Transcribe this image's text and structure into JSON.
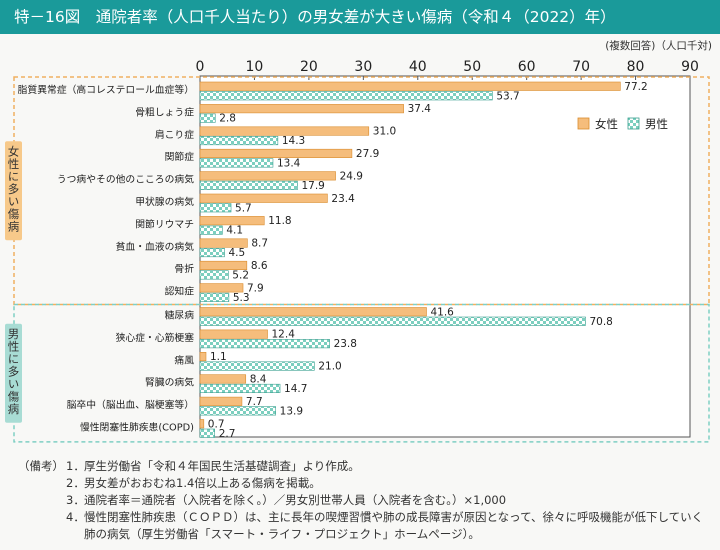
{
  "title": "特－16図　通院者率（人口千人当たり）の男女差が大きい傷病（令和４（2022）年）",
  "unit_note": "(複数回答)（人口千対)",
  "group_labels": {
    "female": "女性に多い傷病",
    "male": "男性に多い傷病"
  },
  "colors": {
    "female_fill": "#f5bd7c",
    "female_stroke": "#d98c2e",
    "male_check_a": "#7ccfbf",
    "male_check_b": "#ffffff",
    "male_stroke": "#3aa090",
    "group_border": "#f0b060",
    "male_group_border": "#7fcfc4",
    "title_bg": "#1a9a9a",
    "group_tag_female": "#f7c98a",
    "group_tag_male": "#a8dcd4"
  },
  "chart_data": {
    "type": "bar",
    "orientation": "horizontal",
    "xlim": [
      0,
      90
    ],
    "x_ticks": [
      "0",
      "10",
      "20",
      "30",
      "40",
      "50",
      "60",
      "70",
      "80",
      "90"
    ],
    "legend_position": "top-right",
    "categories": [
      "脂質異常症（高コレステロール血症等）",
      "骨粗しょう症",
      "肩こり症",
      "関節症",
      "うつ病やその他のこころの病気",
      "甲状腺の病気",
      "関節リウマチ",
      "貧血・血液の病気",
      "骨折",
      "認知症",
      "糖尿病",
      "狭心症・心筋梗塞",
      "痛風",
      "腎臓の病気",
      "脳卒中（脳出血、脳梗塞等）",
      "慢性閉塞性肺疾患(COPD)"
    ],
    "series": [
      {
        "name": "女性",
        "values": [
          77.2,
          37.4,
          31.0,
          27.9,
          24.9,
          23.4,
          11.8,
          8.7,
          8.6,
          7.9,
          41.6,
          12.4,
          1.1,
          8.4,
          7.7,
          0.7
        ],
        "labels": [
          "77.2",
          "37.4",
          "31.0",
          "27.9",
          "24.9",
          "23.4",
          "11.8",
          "8.7",
          "8.6",
          "7.9",
          "41.6",
          "12.4",
          "1.1",
          "8.4",
          "7.7",
          "0.7"
        ]
      },
      {
        "name": "男性",
        "values": [
          53.7,
          2.8,
          14.3,
          13.4,
          17.9,
          5.7,
          4.1,
          4.5,
          5.2,
          5.3,
          70.8,
          23.8,
          21.0,
          14.7,
          13.9,
          2.7
        ],
        "labels": [
          "53.7",
          "2.8",
          "14.3",
          "13.4",
          "17.9",
          "5.7",
          "4.1",
          "4.5",
          "5.2",
          "5.3",
          "70.8",
          "23.8",
          "21.0",
          "14.7",
          "13.9",
          "2.7"
        ]
      }
    ],
    "groups": [
      {
        "name": "女性に多い傷病",
        "start": 0,
        "end": 9
      },
      {
        "name": "男性に多い傷病",
        "start": 10,
        "end": 15
      }
    ]
  },
  "notes": {
    "lead": "（備考）",
    "items": [
      {
        "num": "1．",
        "text": "厚生労働省「令和４年国民生活基礎調査」より作成。"
      },
      {
        "num": "2．",
        "text": "男女差がおおむね1.4倍以上ある傷病を掲載。"
      },
      {
        "num": "3．",
        "text": "通院者率＝通院者（入院者を除く。）／男女別世帯人員（入院者を含む。）×1,000"
      },
      {
        "num": "4．",
        "text": "慢性閉塞性肺疾患（ＣＯＰＤ）は、主に長年の喫煙習慣や肺の成長障害が原因となって、徐々に呼吸機能が低下していく肺の病気（厚生労働省「スマート・ライフ・プロジェクト」ホームページ）。"
      }
    ]
  }
}
